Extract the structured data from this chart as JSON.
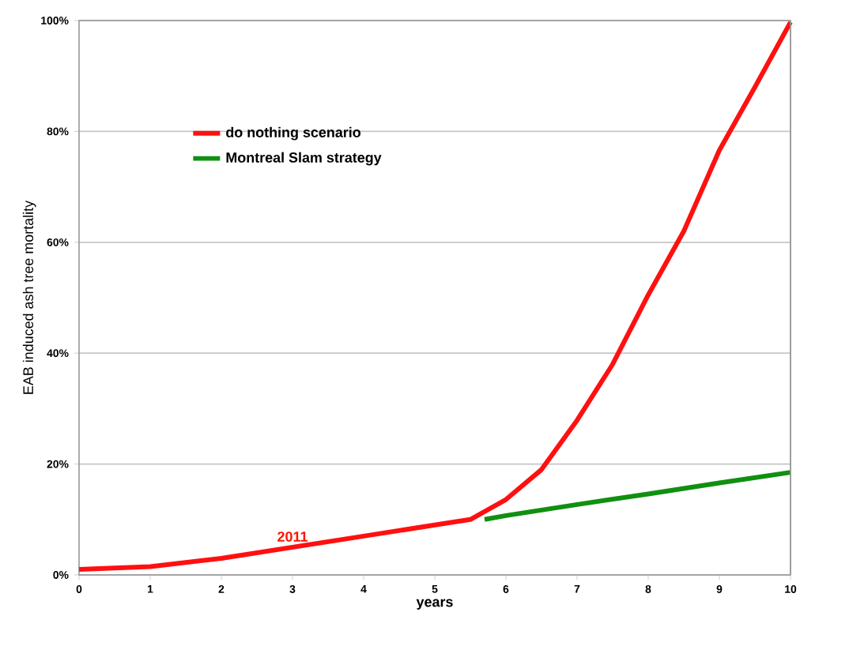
{
  "chart_data": {
    "type": "line",
    "xlabel": "years",
    "ylabel": "EAB induced ash tree mortality",
    "xlim": [
      0,
      10
    ],
    "ylim": [
      0,
      100
    ],
    "xticks": [
      0,
      1,
      2,
      3,
      4,
      5,
      6,
      7,
      8,
      9,
      10
    ],
    "yticks": [
      {
        "value": 0,
        "label": "0%"
      },
      {
        "value": 20,
        "label": "20%"
      },
      {
        "value": 40,
        "label": "40%"
      },
      {
        "value": 60,
        "label": "60%"
      },
      {
        "value": 80,
        "label": "80%"
      },
      {
        "value": 100,
        "label": "100%"
      }
    ],
    "grid": "y",
    "legend": "top left",
    "marker": "none",
    "line_style": "solid",
    "series": [
      {
        "name": "Montreal Slam strategy",
        "color": "#109010",
        "x": [
          5.7,
          6,
          7,
          8,
          9,
          10
        ],
        "values": [
          10,
          10.7,
          12.7,
          14.6,
          16.6,
          18.5
        ]
      },
      {
        "name": "do nothing scenario",
        "color": "#ff1010",
        "x": [
          0,
          1,
          2,
          3,
          4,
          5,
          5.5,
          6,
          6.5,
          7,
          7.5,
          8,
          8.5,
          9,
          9.5,
          10
        ],
        "values": [
          1,
          1.5,
          3,
          5,
          7,
          9,
          10,
          13.6,
          19,
          27.9,
          38,
          50.5,
          62,
          76.6,
          88,
          99.7
        ]
      }
    ],
    "annotations": [
      {
        "text": "2011",
        "x": 3,
        "y": 5
      }
    ]
  }
}
